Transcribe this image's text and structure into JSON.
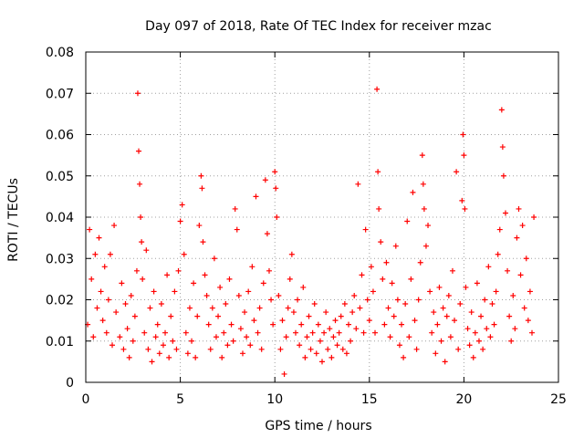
{
  "chart_data": {
    "type": "scatter",
    "title": "Day 097 of 2018, Rate Of TEC Index for receiver mzac",
    "xlabel": "GPS time / hours",
    "ylabel": "ROTI / TECUs",
    "xlim": [
      0,
      25
    ],
    "ylim": [
      0,
      0.08
    ],
    "x_ticks": [
      0,
      5,
      10,
      15,
      20,
      25
    ],
    "y_ticks": [
      0,
      0.01,
      0.02,
      0.03,
      0.04,
      0.05,
      0.06,
      0.07,
      0.08
    ],
    "x_tick_labels": [
      "0",
      "5",
      "10",
      "15",
      "20",
      "25"
    ],
    "y_tick_labels": [
      "0",
      "0.01",
      "0.02",
      "0.03",
      "0.04",
      "0.05",
      "0.06",
      "0.07",
      "0.08"
    ],
    "grid": true,
    "marker": "+",
    "color": "#ff0000",
    "series": [
      {
        "name": "ROTI",
        "points": [
          [
            0.1,
            0.014
          ],
          [
            0.2,
            0.037
          ],
          [
            0.3,
            0.025
          ],
          [
            0.4,
            0.011
          ],
          [
            0.5,
            0.031
          ],
          [
            0.6,
            0.018
          ],
          [
            0.7,
            0.035
          ],
          [
            0.8,
            0.022
          ],
          [
            0.9,
            0.015
          ],
          [
            1.0,
            0.028
          ],
          [
            1.1,
            0.012
          ],
          [
            1.2,
            0.02
          ],
          [
            1.3,
            0.031
          ],
          [
            1.4,
            0.009
          ],
          [
            1.5,
            0.038
          ],
          [
            1.6,
            0.017
          ],
          [
            1.8,
            0.011
          ],
          [
            1.9,
            0.024
          ],
          [
            2.0,
            0.008
          ],
          [
            2.1,
            0.019
          ],
          [
            2.2,
            0.013
          ],
          [
            2.3,
            0.006
          ],
          [
            2.4,
            0.021
          ],
          [
            2.5,
            0.01
          ],
          [
            2.6,
            0.016
          ],
          [
            2.7,
            0.027
          ],
          [
            2.75,
            0.07
          ],
          [
            2.8,
            0.056
          ],
          [
            2.85,
            0.048
          ],
          [
            2.9,
            0.04
          ],
          [
            2.95,
            0.034
          ],
          [
            3.0,
            0.025
          ],
          [
            3.1,
            0.012
          ],
          [
            3.2,
            0.032
          ],
          [
            3.3,
            0.008
          ],
          [
            3.4,
            0.018
          ],
          [
            3.5,
            0.005
          ],
          [
            3.6,
            0.022
          ],
          [
            3.7,
            0.011
          ],
          [
            3.8,
            0.014
          ],
          [
            3.9,
            0.007
          ],
          [
            4.0,
            0.019
          ],
          [
            4.1,
            0.009
          ],
          [
            4.2,
            0.012
          ],
          [
            4.3,
            0.026
          ],
          [
            4.4,
            0.006
          ],
          [
            4.5,
            0.016
          ],
          [
            4.6,
            0.01
          ],
          [
            4.7,
            0.022
          ],
          [
            4.8,
            0.008
          ],
          [
            4.9,
            0.027
          ],
          [
            5.0,
            0.039
          ],
          [
            5.1,
            0.043
          ],
          [
            5.2,
            0.031
          ],
          [
            5.3,
            0.012
          ],
          [
            5.4,
            0.007
          ],
          [
            5.5,
            0.018
          ],
          [
            5.6,
            0.01
          ],
          [
            5.7,
            0.024
          ],
          [
            5.8,
            0.006
          ],
          [
            5.9,
            0.016
          ],
          [
            6.0,
            0.038
          ],
          [
            6.1,
            0.05
          ],
          [
            6.15,
            0.047
          ],
          [
            6.2,
            0.034
          ],
          [
            6.3,
            0.026
          ],
          [
            6.4,
            0.021
          ],
          [
            6.5,
            0.014
          ],
          [
            6.6,
            0.008
          ],
          [
            6.7,
            0.018
          ],
          [
            6.8,
            0.03
          ],
          [
            6.9,
            0.011
          ],
          [
            7.0,
            0.016
          ],
          [
            7.1,
            0.023
          ],
          [
            7.2,
            0.006
          ],
          [
            7.3,
            0.012
          ],
          [
            7.4,
            0.019
          ],
          [
            7.5,
            0.009
          ],
          [
            7.6,
            0.025
          ],
          [
            7.7,
            0.014
          ],
          [
            7.8,
            0.01
          ],
          [
            7.9,
            0.042
          ],
          [
            8.0,
            0.037
          ],
          [
            8.1,
            0.021
          ],
          [
            8.2,
            0.013
          ],
          [
            8.3,
            0.007
          ],
          [
            8.4,
            0.017
          ],
          [
            8.5,
            0.011
          ],
          [
            8.6,
            0.022
          ],
          [
            8.7,
            0.009
          ],
          [
            8.8,
            0.028
          ],
          [
            8.9,
            0.015
          ],
          [
            9.0,
            0.045
          ],
          [
            9.1,
            0.012
          ],
          [
            9.2,
            0.018
          ],
          [
            9.3,
            0.008
          ],
          [
            9.4,
            0.024
          ],
          [
            9.5,
            0.049
          ],
          [
            9.6,
            0.036
          ],
          [
            9.7,
            0.027
          ],
          [
            9.8,
            0.02
          ],
          [
            9.9,
            0.014
          ],
          [
            10.0,
            0.051
          ],
          [
            10.05,
            0.047
          ],
          [
            10.1,
            0.04
          ],
          [
            10.2,
            0.021
          ],
          [
            10.3,
            0.008
          ],
          [
            10.4,
            0.015
          ],
          [
            10.5,
            0.002
          ],
          [
            10.6,
            0.011
          ],
          [
            10.7,
            0.018
          ],
          [
            10.8,
            0.025
          ],
          [
            10.9,
            0.031
          ],
          [
            11.0,
            0.017
          ],
          [
            11.1,
            0.012
          ],
          [
            11.2,
            0.02
          ],
          [
            11.3,
            0.009
          ],
          [
            11.4,
            0.014
          ],
          [
            11.5,
            0.023
          ],
          [
            11.6,
            0.006
          ],
          [
            11.7,
            0.011
          ],
          [
            11.8,
            0.016
          ],
          [
            11.9,
            0.008
          ],
          [
            12.0,
            0.012
          ],
          [
            12.1,
            0.019
          ],
          [
            12.2,
            0.007
          ],
          [
            12.3,
            0.014
          ],
          [
            12.4,
            0.01
          ],
          [
            12.5,
            0.005
          ],
          [
            12.6,
            0.012
          ],
          [
            12.7,
            0.017
          ],
          [
            12.8,
            0.008
          ],
          [
            12.9,
            0.013
          ],
          [
            13.0,
            0.006
          ],
          [
            13.1,
            0.011
          ],
          [
            13.2,
            0.015
          ],
          [
            13.3,
            0.009
          ],
          [
            13.4,
            0.012
          ],
          [
            13.5,
            0.016
          ],
          [
            13.6,
            0.008
          ],
          [
            13.7,
            0.019
          ],
          [
            13.8,
            0.007
          ],
          [
            13.9,
            0.014
          ],
          [
            14.0,
            0.01
          ],
          [
            14.1,
            0.017
          ],
          [
            14.2,
            0.021
          ],
          [
            14.3,
            0.013
          ],
          [
            14.4,
            0.048
          ],
          [
            14.5,
            0.018
          ],
          [
            14.6,
            0.026
          ],
          [
            14.7,
            0.012
          ],
          [
            14.8,
            0.037
          ],
          [
            14.9,
            0.02
          ],
          [
            15.0,
            0.015
          ],
          [
            15.1,
            0.028
          ],
          [
            15.2,
            0.022
          ],
          [
            15.3,
            0.012
          ],
          [
            15.4,
            0.071
          ],
          [
            15.45,
            0.051
          ],
          [
            15.5,
            0.042
          ],
          [
            15.6,
            0.034
          ],
          [
            15.7,
            0.025
          ],
          [
            15.8,
            0.014
          ],
          [
            15.9,
            0.029
          ],
          [
            16.0,
            0.018
          ],
          [
            16.1,
            0.011
          ],
          [
            16.2,
            0.024
          ],
          [
            16.3,
            0.016
          ],
          [
            16.4,
            0.033
          ],
          [
            16.5,
            0.02
          ],
          [
            16.6,
            0.009
          ],
          [
            16.7,
            0.014
          ],
          [
            16.8,
            0.006
          ],
          [
            16.9,
            0.019
          ],
          [
            17.0,
            0.039
          ],
          [
            17.1,
            0.011
          ],
          [
            17.2,
            0.025
          ],
          [
            17.3,
            0.046
          ],
          [
            17.4,
            0.015
          ],
          [
            17.5,
            0.008
          ],
          [
            17.6,
            0.02
          ],
          [
            17.7,
            0.029
          ],
          [
            17.8,
            0.055
          ],
          [
            17.85,
            0.048
          ],
          [
            17.9,
            0.042
          ],
          [
            18.0,
            0.033
          ],
          [
            18.1,
            0.038
          ],
          [
            18.2,
            0.022
          ],
          [
            18.3,
            0.012
          ],
          [
            18.4,
            0.017
          ],
          [
            18.5,
            0.007
          ],
          [
            18.6,
            0.014
          ],
          [
            18.7,
            0.023
          ],
          [
            18.8,
            0.01
          ],
          [
            18.9,
            0.018
          ],
          [
            19.0,
            0.005
          ],
          [
            19.1,
            0.016
          ],
          [
            19.2,
            0.021
          ],
          [
            19.3,
            0.011
          ],
          [
            19.4,
            0.027
          ],
          [
            19.5,
            0.015
          ],
          [
            19.6,
            0.051
          ],
          [
            19.7,
            0.008
          ],
          [
            19.8,
            0.019
          ],
          [
            19.9,
            0.044
          ],
          [
            19.95,
            0.06
          ],
          [
            20.0,
            0.055
          ],
          [
            20.05,
            0.042
          ],
          [
            20.1,
            0.023
          ],
          [
            20.2,
            0.013
          ],
          [
            20.3,
            0.009
          ],
          [
            20.4,
            0.017
          ],
          [
            20.5,
            0.006
          ],
          [
            20.6,
            0.012
          ],
          [
            20.7,
            0.024
          ],
          [
            20.8,
            0.01
          ],
          [
            20.9,
            0.016
          ],
          [
            21.0,
            0.008
          ],
          [
            21.1,
            0.02
          ],
          [
            21.2,
            0.013
          ],
          [
            21.3,
            0.028
          ],
          [
            21.4,
            0.011
          ],
          [
            21.5,
            0.019
          ],
          [
            21.6,
            0.014
          ],
          [
            21.7,
            0.022
          ],
          [
            21.8,
            0.031
          ],
          [
            21.9,
            0.037
          ],
          [
            22.0,
            0.066
          ],
          [
            22.05,
            0.057
          ],
          [
            22.1,
            0.05
          ],
          [
            22.2,
            0.041
          ],
          [
            22.3,
            0.027
          ],
          [
            22.4,
            0.016
          ],
          [
            22.5,
            0.01
          ],
          [
            22.6,
            0.021
          ],
          [
            22.7,
            0.013
          ],
          [
            22.8,
            0.035
          ],
          [
            22.9,
            0.042
          ],
          [
            23.0,
            0.026
          ],
          [
            23.1,
            0.038
          ],
          [
            23.2,
            0.018
          ],
          [
            23.3,
            0.03
          ],
          [
            23.4,
            0.015
          ],
          [
            23.5,
            0.022
          ],
          [
            23.6,
            0.012
          ],
          [
            23.7,
            0.04
          ]
        ]
      }
    ]
  }
}
